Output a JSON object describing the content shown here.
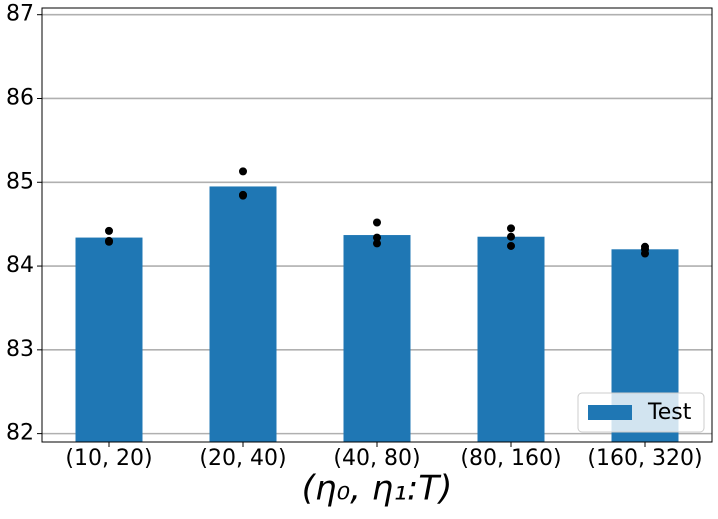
{
  "chart_data": {
    "type": "bar",
    "x_label": "(η₀, η₁:T)",
    "categories": [
      "(10, 20)",
      "(20, 40)",
      "(40, 80)",
      "(80, 160)",
      "(160, 320)"
    ],
    "series": [
      {
        "name": "Test",
        "color": "#1f77b4",
        "values": [
          84.34,
          84.95,
          84.37,
          84.35,
          84.2
        ]
      }
    ],
    "points": [
      [
        84.42,
        84.3,
        84.29
      ],
      [
        85.13,
        84.85,
        84.84
      ],
      [
        84.52,
        84.34,
        84.27
      ],
      [
        84.45,
        84.35,
        84.24
      ],
      [
        84.23,
        84.2,
        84.15
      ]
    ],
    "points_color": "#000000",
    "ylim": [
      81.9,
      87.08
    ],
    "yticks": [
      82,
      83,
      84,
      85,
      86,
      87
    ],
    "grid": true,
    "legend": "lower right"
  }
}
